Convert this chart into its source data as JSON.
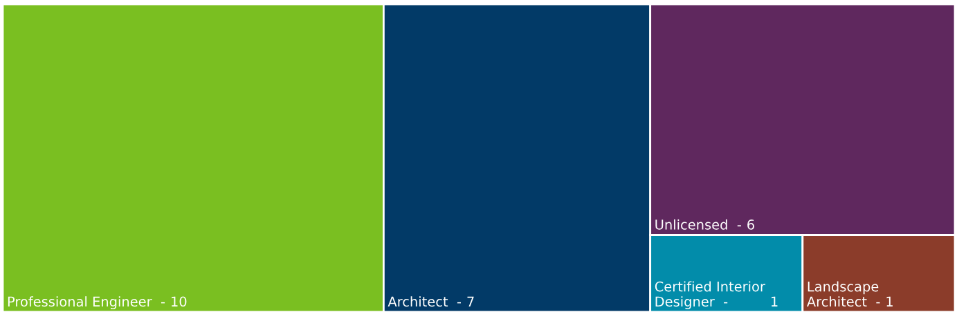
{
  "chart_data": {
    "type": "other",
    "categories": [
      "Professional Engineer  -",
      "Architect  -",
      "Unlicensed  -",
      "Certified Interior\nDesigner  -",
      "Landscape\nArchitect  -"
    ],
    "values": [
      10,
      7,
      6,
      1,
      1
    ],
    "data_labels": true,
    "colors": [
      "#7abf21",
      "#023a67",
      "#5f285e",
      "#028caa",
      "#8b3c2a"
    ]
  }
}
